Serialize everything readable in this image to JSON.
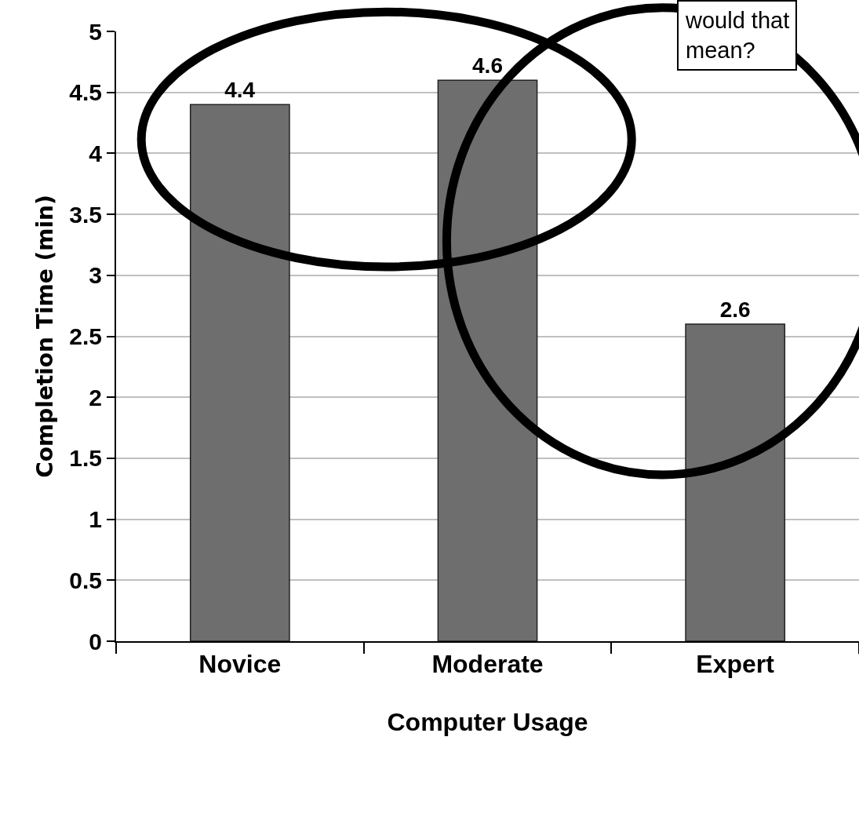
{
  "chart_data": {
    "type": "bar",
    "xlabel": "Computer Usage",
    "ylabel": "Completion Time (min)",
    "categories": [
      "Novice",
      "Moderate",
      "Expert"
    ],
    "values": [
      4.4,
      4.6,
      2.6
    ],
    "color": "#6e6e6e",
    "ylim": [
      0,
      5
    ],
    "yticks": [
      0,
      0.5,
      1,
      1.5,
      2,
      2.5,
      3,
      3.5,
      4,
      4.5,
      5
    ],
    "grid": "y",
    "data_labels": true,
    "annotations": [
      "would that\nmean?"
    ]
  }
}
